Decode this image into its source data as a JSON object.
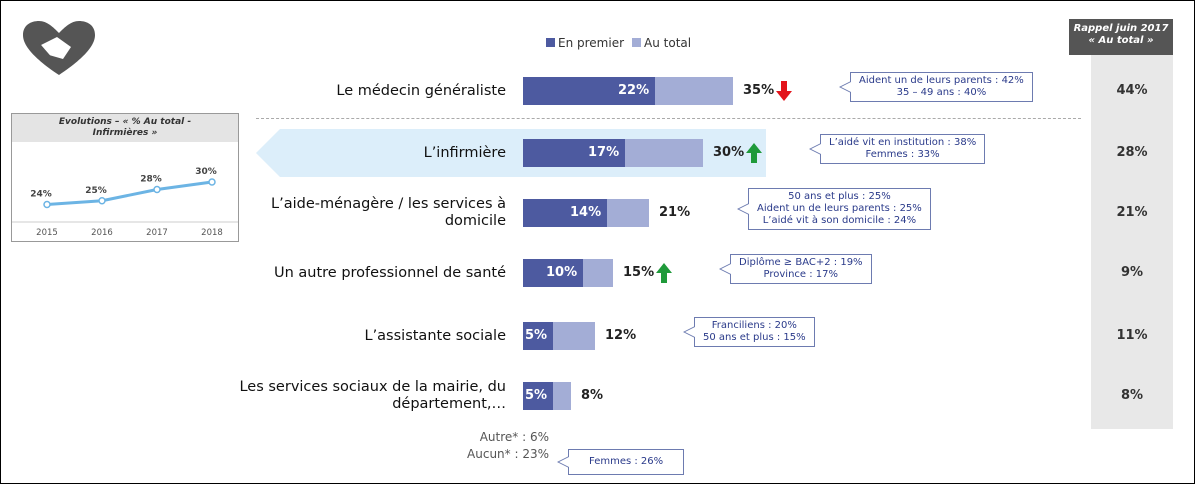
{
  "chart_data": [
    {
      "type": "bar",
      "orientation": "horizontal",
      "categories": [
        "Le médecin généraliste",
        "L’infirmière",
        "L’aide-ménagère / les services à domicile",
        "Un autre professionnel de santé",
        "L’assistante sociale",
        "Les services sociaux de la mairie, du département,…"
      ],
      "series": [
        {
          "name": "En premier",
          "color": "#4d5aa0",
          "values": [
            22,
            17,
            14,
            10,
            5,
            5
          ],
          "value_labels": [
            "22%",
            "17%",
            "14%",
            "10%",
            "5%",
            "5%"
          ]
        },
        {
          "name": "Au total",
          "color": "#a3add6",
          "values": [
            35,
            30,
            21,
            15,
            12,
            8
          ],
          "value_labels": [
            "35%",
            "30%",
            "21%",
            "15%",
            "12%",
            "8%"
          ]
        }
      ],
      "xlim": [
        0,
        50
      ],
      "trend": [
        "down",
        "up",
        null,
        "up",
        null,
        null
      ],
      "callouts": [
        [
          "Aident un de leurs parents : 42%",
          "35 – 49 ans : 40%"
        ],
        [
          "L’aidé vit en institution : 38%",
          "Femmes : 33%"
        ],
        [
          "50 ans et plus : 25%",
          "Aident un de leurs parents : 25%",
          "L’aidé vit à son domicile : 24%"
        ],
        [
          "Diplôme ≥ BAC+2 : 19%",
          "Province : 17%"
        ],
        [
          "Franciliens : 20%",
          "50 ans et plus : 15%"
        ],
        null
      ]
    },
    {
      "type": "line",
      "title": "Evolutions – « % Au total - Infirmières »",
      "x": [
        "2015",
        "2016",
        "2017",
        "2018"
      ],
      "values": [
        24,
        25,
        28,
        30
      ],
      "value_labels": [
        "24%",
        "25%",
        "28%",
        "30%"
      ],
      "ylim": [
        18,
        34
      ],
      "color": "#6cb4e4"
    }
  ],
  "recall": {
    "title": [
      "Rappel juin 2017",
      "« Au total »"
    ],
    "values": [
      44,
      28,
      21,
      9,
      11,
      8
    ],
    "value_labels": [
      "44%",
      "28%",
      "21%",
      "9%",
      "11%",
      "8%"
    ]
  },
  "footer": {
    "lines": [
      "Autre* : 6%",
      "Aucun* : 23%"
    ],
    "callout": "Femmes : 26%"
  }
}
